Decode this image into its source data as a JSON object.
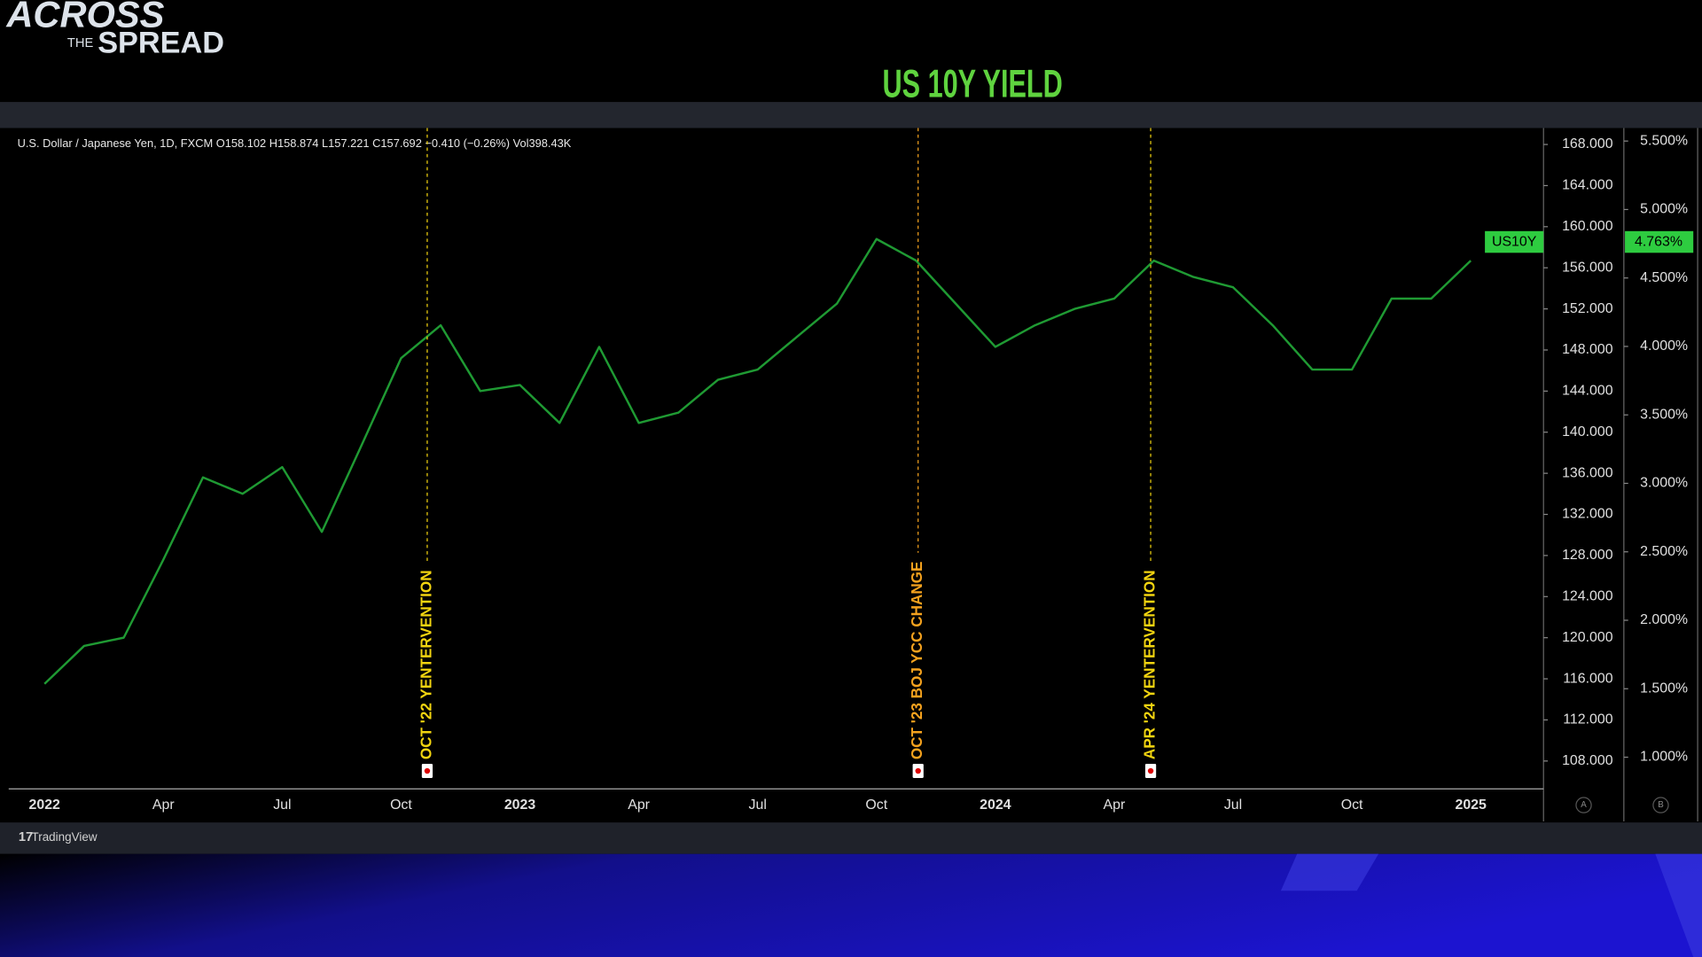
{
  "logo": {
    "line1": "ACROSS",
    "line2": "THE",
    "line3": "SPREAD"
  },
  "footer": "TradingView",
  "axis_buttons": [
    "A",
    "B"
  ],
  "chart_data": {
    "type": "line",
    "title": "US 10Y YIELD",
    "header": "U.S. Dollar / Japanese Yen, 1D, FXCM  O158.102  H158.874  L157.221  C157.692  −0.410 (−0.26%)  Vol398.43K",
    "categories": [
      "2022",
      null,
      null,
      "Apr",
      null,
      null,
      "Jul",
      null,
      null,
      "Oct",
      null,
      null,
      "2023",
      null,
      null,
      "Apr",
      null,
      null,
      "Jul",
      null,
      null,
      "Oct",
      null,
      null,
      "2024",
      null,
      null,
      "Apr",
      null,
      null,
      "Jul",
      null,
      null,
      "Oct",
      null,
      null,
      "2025"
    ],
    "series": [
      {
        "name": "U.S. Dollar / Japanese Yen",
        "color": "#1f9a33",
        "values": [
          115.5,
          119.2,
          120,
          127.6,
          135.6,
          134,
          136.6,
          130.3,
          138.7,
          147.2,
          150.4,
          144,
          144.6,
          140.9,
          148.3,
          140.9,
          141.9,
          145.1,
          146.1,
          149.3,
          152.5,
          158.8,
          156.7,
          152.5,
          148.3,
          150.4,
          152,
          153,
          156.7,
          155.1,
          154.1,
          150.4,
          146.1,
          146.1,
          153,
          153,
          156.7
        ]
      }
    ],
    "ylim": [
      105.4,
      169.6
    ],
    "yticks": [
      {
        "value": 168,
        "label": "168.000"
      },
      {
        "value": 164,
        "label": "164.000"
      },
      {
        "value": 160,
        "label": "160.000"
      },
      {
        "value": 156,
        "label": "156.000"
      },
      {
        "value": 152,
        "label": "152.000"
      },
      {
        "value": 148,
        "label": "148.000"
      },
      {
        "value": 144,
        "label": "144.000"
      },
      {
        "value": 140,
        "label": "140.000"
      },
      {
        "value": 136,
        "label": "136.000"
      },
      {
        "value": 132,
        "label": "132.000"
      },
      {
        "value": 128,
        "label": "128.000"
      },
      {
        "value": 124,
        "label": "124.000"
      },
      {
        "value": 120,
        "label": "120.000"
      },
      {
        "value": 116,
        "label": "116.000"
      },
      {
        "value": 112,
        "label": "112.000"
      },
      {
        "value": 108,
        "label": "108.000"
      }
    ],
    "y2lim": [
      0.777,
      5.595
    ],
    "y2ticks": [
      {
        "value": 5.5,
        "label": "5.500%"
      },
      {
        "value": 5,
        "label": "5.000%"
      },
      {
        "value": 4.5,
        "label": "4.500%"
      },
      {
        "value": 4,
        "label": "4.000%"
      },
      {
        "value": 3.5,
        "label": "3.500%"
      },
      {
        "value": 3,
        "label": "3.000%"
      },
      {
        "value": 2.5,
        "label": "2.500%"
      },
      {
        "value": 2,
        "label": "2.000%"
      },
      {
        "value": 1.5,
        "label": "1.500%"
      },
      {
        "value": 1,
        "label": "1.000%"
      }
    ],
    "last_value": {
      "name": "US10Y",
      "value": 4.763,
      "label": "4.763%",
      "color": "#2ecc40"
    },
    "annotations": [
      {
        "label": "OCT '22  YENTERVENTION",
        "x": 9.66,
        "color": "#f2d410"
      },
      {
        "label": "OCT '23  BOJ YCC CHANGE",
        "x": 22.05,
        "color": "#f5a21e"
      },
      {
        "label": "APR '24  YENTERVENTION",
        "x": 27.92,
        "color": "#f2d410"
      }
    ],
    "grid": false
  }
}
